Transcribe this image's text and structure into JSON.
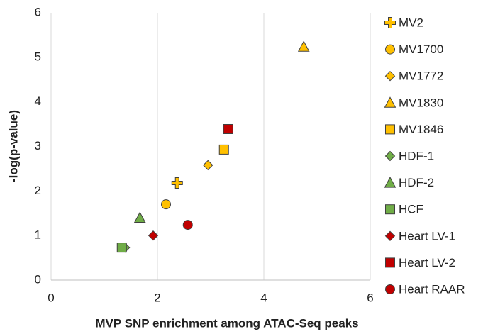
{
  "chart_data": {
    "type": "scatter",
    "x_label": "MVP SNP enrichment among ATAC-Seq peaks",
    "y_label": "-log(p-value)",
    "xlim": [
      0,
      6
    ],
    "xticks": [
      0,
      2,
      4,
      6
    ],
    "ylim": [
      0,
      6
    ],
    "yticks": [
      0,
      1,
      2,
      3,
      4,
      5,
      6
    ],
    "grid": "x",
    "legend": "right",
    "series": [
      {
        "name": "MV2",
        "color": "#ffc000",
        "marker": "plus",
        "x": [
          2.37
        ],
        "values": [
          2.18
        ]
      },
      {
        "name": "MV1700",
        "color": "#ffc000",
        "marker": "circle",
        "x": [
          2.16
        ],
        "values": [
          1.7
        ]
      },
      {
        "name": "MV1772",
        "color": "#ffc000",
        "marker": "diamond",
        "x": [
          2.95
        ],
        "values": [
          2.58
        ]
      },
      {
        "name": "MV1830",
        "color": "#ffc000",
        "marker": "triangle",
        "x": [
          4.75
        ],
        "values": [
          5.24
        ]
      },
      {
        "name": "MV1846",
        "color": "#ffc000",
        "marker": "square",
        "x": [
          3.25
        ],
        "values": [
          2.93
        ]
      },
      {
        "name": "HDF-1",
        "color": "#70ad47",
        "marker": "diamond",
        "x": [
          1.39
        ],
        "values": [
          0.73
        ]
      },
      {
        "name": "HDF-2",
        "color": "#70ad47",
        "marker": "triangle",
        "x": [
          1.67
        ],
        "values": [
          1.4
        ]
      },
      {
        "name": "HCF",
        "color": "#70ad47",
        "marker": "square",
        "x": [
          1.33
        ],
        "values": [
          0.73
        ]
      },
      {
        "name": "Heart LV-1",
        "color": "#c00000",
        "marker": "diamond",
        "x": [
          1.92
        ],
        "values": [
          1.0
        ]
      },
      {
        "name": "Heart LV-2",
        "color": "#c00000",
        "marker": "square",
        "x": [
          3.33
        ],
        "values": [
          3.39
        ]
      },
      {
        "name": "Heart RAAR",
        "color": "#c00000",
        "marker": "circle",
        "x": [
          2.57
        ],
        "values": [
          1.24
        ]
      }
    ]
  }
}
